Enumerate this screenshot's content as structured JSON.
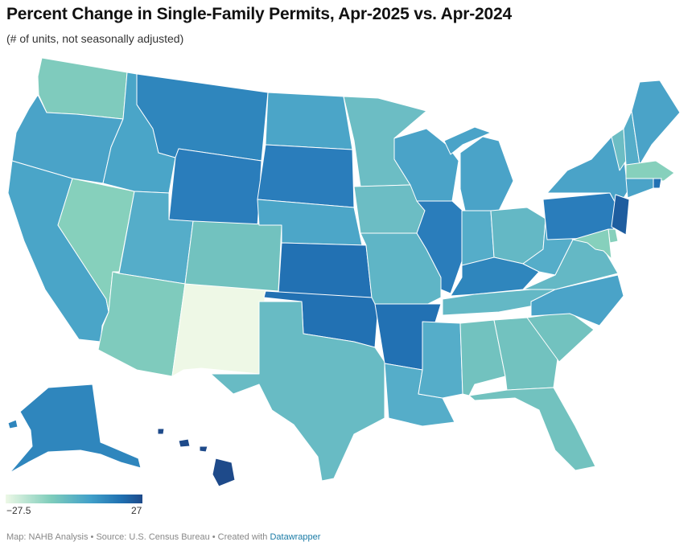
{
  "header": {
    "title": "Percent Change in Single-Family Permits, Apr-2025 vs. Apr-2024",
    "subtitle": "(# of units, not seasonally adjusted)"
  },
  "legend": {
    "min_label": "−27.5",
    "max_label": "27",
    "min": -27.5,
    "max": 27,
    "colors": [
      "#edf8e6",
      "#7fcdbb",
      "#41a0c9",
      "#1f6fb0",
      "#1e4a8a"
    ]
  },
  "footer": {
    "credit": "Map: NAHB Analysis • Source: U.S. Census Bureau • Created with ",
    "link": "Datawrapper"
  },
  "chart_data": {
    "type": "choropleth",
    "title": "Percent Change in Single-Family Permits, Apr-2025 vs. Apr-2024",
    "color_scale": {
      "min": -27.5,
      "max": 27
    },
    "states": [
      {
        "id": "WA",
        "color": "#7fcbbd"
      },
      {
        "id": "OR",
        "color": "#4aa3c8"
      },
      {
        "id": "CA",
        "color": "#4aa5c8"
      },
      {
        "id": "NV",
        "color": "#86d0bc"
      },
      {
        "id": "ID",
        "color": "#4aa5c8"
      },
      {
        "id": "MT",
        "color": "#2f86bd"
      },
      {
        "id": "WY",
        "color": "#2a7dbb"
      },
      {
        "id": "UT",
        "color": "#55adc9"
      },
      {
        "id": "AZ",
        "color": "#7fcbbd"
      },
      {
        "id": "NM",
        "color": "#eef8e6"
      },
      {
        "id": "CO",
        "color": "#72c2bf"
      },
      {
        "id": "ND",
        "color": "#4ba5c8"
      },
      {
        "id": "SD",
        "color": "#2a7dbb"
      },
      {
        "id": "NE",
        "color": "#4ca6c8"
      },
      {
        "id": "KS",
        "color": "#2271b3"
      },
      {
        "id": "OK",
        "color": "#2271b3"
      },
      {
        "id": "TX",
        "color": "#68bbc4"
      },
      {
        "id": "MN",
        "color": "#6cbdc4"
      },
      {
        "id": "IA",
        "color": "#6cbdc4"
      },
      {
        "id": "MO",
        "color": "#5fb5c6"
      },
      {
        "id": "AR",
        "color": "#2271b3"
      },
      {
        "id": "LA",
        "color": "#55adc9"
      },
      {
        "id": "WI",
        "color": "#4aa3c8"
      },
      {
        "id": "IL",
        "color": "#2a7dbb"
      },
      {
        "id": "MI",
        "color": "#4aa3c8"
      },
      {
        "id": "IN",
        "color": "#55adc9"
      },
      {
        "id": "OH",
        "color": "#64b8c5"
      },
      {
        "id": "KY",
        "color": "#2f86bd"
      },
      {
        "id": "TN",
        "color": "#64b8c5"
      },
      {
        "id": "MS",
        "color": "#55adc9"
      },
      {
        "id": "AL",
        "color": "#72c2bf"
      },
      {
        "id": "GA",
        "color": "#72c2bf"
      },
      {
        "id": "FL",
        "color": "#72c2bf"
      },
      {
        "id": "SC",
        "color": "#72c2bf"
      },
      {
        "id": "NC",
        "color": "#4aa3c8"
      },
      {
        "id": "VA",
        "color": "#64b8c5"
      },
      {
        "id": "WV",
        "color": "#55adc9"
      },
      {
        "id": "PA",
        "color": "#2a7dbb"
      },
      {
        "id": "NY",
        "color": "#4aa3c8"
      },
      {
        "id": "VT",
        "color": "#6cbdc4"
      },
      {
        "id": "NH",
        "color": "#55adc9"
      },
      {
        "id": "ME",
        "color": "#4aa3c8"
      },
      {
        "id": "MA",
        "color": "#86d0bc"
      },
      {
        "id": "RI",
        "color": "#2271b3"
      },
      {
        "id": "CT",
        "color": "#4aa3c8"
      },
      {
        "id": "NJ",
        "color": "#1e5d9f"
      },
      {
        "id": "DE",
        "color": "#86d0bc"
      },
      {
        "id": "MD",
        "color": "#86d0bc"
      },
      {
        "id": "AK",
        "color": "#2f86bd"
      },
      {
        "id": "HI",
        "color": "#1e4a8a"
      }
    ]
  }
}
